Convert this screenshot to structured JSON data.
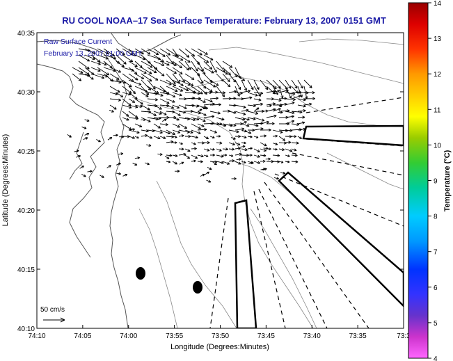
{
  "title": "RU COOL  NOAA–17  Sea Surface Temperature:  February 13, 2007 0151 GMT",
  "overlay": {
    "line1": "Raw Surface Current",
    "line2": "February 13, 2007 01:00 GMT"
  },
  "scale_label": "50 cm/s",
  "x_axis": {
    "label": "Longitude (Degrees:Minutes)",
    "ticks": [
      "74:10",
      "74:05",
      "74:00",
      "73:55",
      "73:50",
      "73:45",
      "73:40",
      "73:35",
      "73:3"
    ]
  },
  "y_axis": {
    "label": "Latitude (Degrees:Minutes)",
    "ticks": [
      "40:35",
      "40:30",
      "40:25",
      "40:20",
      "40:15",
      "40:10"
    ]
  },
  "colorbar": {
    "label": "Temperature (°C)",
    "ticks": [
      "14",
      "13",
      "12",
      "11",
      "10",
      "9",
      "8",
      "7",
      "6",
      "5",
      "4"
    ],
    "min": 4,
    "max": 14
  },
  "colors": {
    "title": "#1a1aa6",
    "overlay_text": "#1a1aa6",
    "arrows": "#000000",
    "contours": "#888888",
    "coastline": "#555555"
  }
}
